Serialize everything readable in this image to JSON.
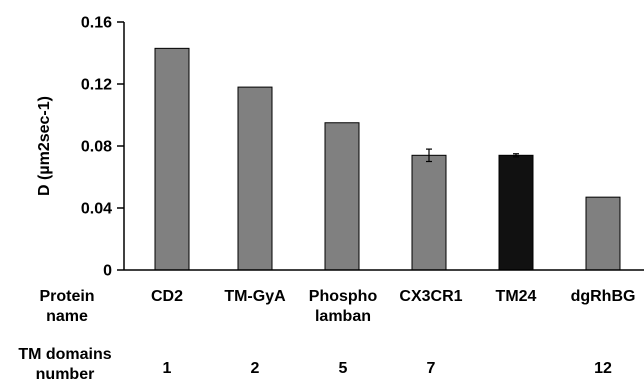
{
  "chart_data": {
    "type": "bar",
    "categories": [
      [
        "CD2"
      ],
      [
        "TM-GyA"
      ],
      [
        "Phospho",
        "lamban"
      ],
      [
        "CX3CR1"
      ],
      [
        "TM24"
      ],
      [
        "dgRhBG"
      ]
    ],
    "values": [
      0.143,
      0.118,
      0.095,
      0.074,
      0.074,
      0.047
    ],
    "error": [
      null,
      null,
      null,
      0.004,
      0.001,
      null
    ],
    "bar_colors": [
      "#808080",
      "#808080",
      "#808080",
      "#808080",
      "#111111",
      "#808080"
    ],
    "ylabel": "D (µm2sec-1)",
    "ylim": [
      0,
      0.16
    ],
    "yticks": [
      "0",
      "0.04",
      "0.08",
      "0.12",
      "0.16"
    ],
    "ytick_values": [
      0,
      0.04,
      0.08,
      0.12,
      0.16
    ],
    "row_labels": {
      "protein": [
        "Protein",
        "name"
      ],
      "tm": [
        "TM domains",
        "number"
      ]
    },
    "tm_domains": [
      "1",
      "2",
      "5",
      "7",
      "",
      "12"
    ],
    "grid": false
  }
}
